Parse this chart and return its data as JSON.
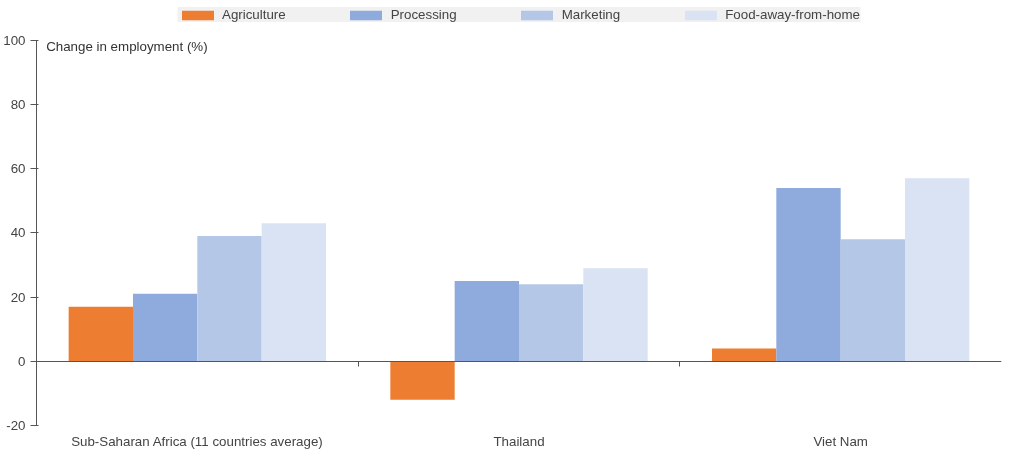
{
  "chart_data": {
    "type": "bar",
    "ylabel": "Change in employment (%)",
    "categories": [
      "Sub-Saharan Africa (11 countries average)",
      "Thailand",
      "Viet Nam"
    ],
    "series": [
      {
        "name": "Agriculture",
        "color": "#ed7d31",
        "values": [
          17,
          -12,
          4
        ]
      },
      {
        "name": "Processing",
        "color": "#8faadc",
        "values": [
          21,
          25,
          54
        ]
      },
      {
        "name": "Marketing",
        "color": "#b4c7e7",
        "values": [
          39,
          24,
          38
        ]
      },
      {
        "name": "Food-away-from-home",
        "color": "#dae3f3",
        "values": [
          43,
          29,
          57
        ]
      }
    ],
    "ylim": [
      -20,
      100
    ],
    "yticks": [
      -20,
      0,
      20,
      40,
      60,
      80,
      100
    ],
    "legend": "top"
  }
}
